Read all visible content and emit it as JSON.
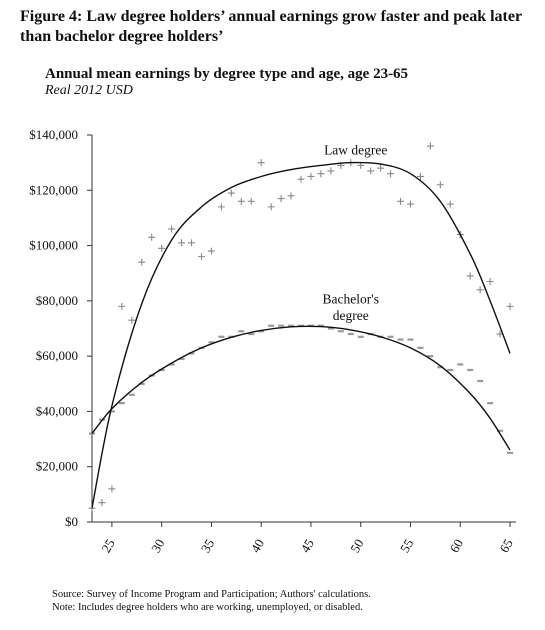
{
  "figure_title": "Figure 4: Law degree holders’ annual earnings grow faster and peak later than bachelor degree holders’",
  "chart_data": {
    "type": "scatter",
    "title": "Annual mean earnings by degree type and age, age 23-65",
    "subtitle": "Real 2012 USD",
    "xlabel": "",
    "ylabel": "",
    "xlim": [
      23,
      65
    ],
    "ylim": [
      0,
      140000
    ],
    "x_ticks": [
      25,
      30,
      35,
      40,
      45,
      50,
      55,
      60,
      65
    ],
    "y_ticks": [
      0,
      20000,
      40000,
      60000,
      80000,
      100000,
      120000,
      140000
    ],
    "y_tick_labels": [
      "$0",
      "$20,000",
      "$40,000",
      "$60,000",
      "$80,000",
      "$100,000",
      "$120,000",
      "$140,000"
    ],
    "grid": false,
    "series": [
      {
        "name": "Law degree",
        "marker": "+",
        "color": "#888888",
        "x": [
          23,
          24,
          25,
          26,
          27,
          28,
          29,
          30,
          31,
          32,
          33,
          34,
          35,
          36,
          37,
          38,
          39,
          40,
          41,
          42,
          43,
          44,
          45,
          46,
          47,
          48,
          49,
          50,
          51,
          52,
          53,
          54,
          55,
          56,
          57,
          58,
          59,
          60,
          61,
          62,
          63,
          64,
          65
        ],
        "y": [
          5000,
          7000,
          12000,
          78000,
          73000,
          94000,
          103000,
          99000,
          106000,
          101000,
          101000,
          96000,
          98000,
          114000,
          119000,
          116000,
          116000,
          130000,
          114000,
          117000,
          118000,
          124000,
          125000,
          126000,
          127000,
          129000,
          130000,
          129000,
          127000,
          128000,
          126000,
          116000,
          115000,
          125000,
          136000,
          122000,
          115000,
          104000,
          89000,
          84000,
          87000,
          68000,
          78000
        ]
      },
      {
        "name": "Bachelor's degree",
        "marker": "-",
        "color": "#999999",
        "x": [
          23,
          24,
          25,
          26,
          27,
          28,
          29,
          30,
          31,
          32,
          33,
          34,
          35,
          36,
          37,
          38,
          39,
          40,
          41,
          42,
          43,
          44,
          45,
          46,
          47,
          48,
          49,
          50,
          51,
          52,
          53,
          54,
          55,
          56,
          57,
          58,
          59,
          60,
          61,
          62,
          63,
          64,
          65
        ],
        "y": [
          32000,
          37000,
          40000,
          43000,
          46000,
          50000,
          53000,
          55000,
          57000,
          59000,
          61000,
          63000,
          65000,
          67000,
          67000,
          69000,
          68000,
          69000,
          71000,
          71000,
          71000,
          71000,
          71000,
          71000,
          70000,
          69000,
          68000,
          67000,
          68000,
          67000,
          67000,
          66000,
          66000,
          63000,
          60000,
          56000,
          55000,
          57000,
          55000,
          51000,
          43000,
          33000,
          25000
        ]
      }
    ],
    "fit_curves": [
      {
        "series": "Law degree",
        "type": "quadratic",
        "x": [
          23,
          25,
          28,
          31,
          34,
          37,
          40,
          43,
          46,
          49,
          52,
          55,
          58,
          61,
          63,
          65
        ],
        "y": [
          5000,
          42000,
          79000,
          102000,
          114000,
          121000,
          125000,
          127500,
          129000,
          130000,
          129500,
          126000,
          116000,
          97000,
          80000,
          61000
        ]
      },
      {
        "series": "Bachelor's degree",
        "type": "quadratic",
        "x": [
          23,
          25,
          28,
          31,
          34,
          37,
          40,
          43,
          46,
          49,
          52,
          55,
          58,
          61,
          63,
          65
        ],
        "y": [
          32000,
          41000,
          50500,
          57500,
          63000,
          66800,
          69300,
          70600,
          70700,
          69500,
          67000,
          63000,
          56500,
          46500,
          37500,
          26000
        ]
      }
    ],
    "annotations": [
      {
        "text": "Law degree",
        "x": 49.5,
        "y": 133000
      },
      {
        "text": "Bachelor's",
        "x": 49,
        "y": 79000
      },
      {
        "text": "degree",
        "x": 49,
        "y": 73000
      }
    ]
  },
  "notes": {
    "source": "Source: Survey of Income Program and Participation; Authors' calculations.",
    "note": "Note:  Includes degree holders who are working, unemployed, or disabled."
  }
}
